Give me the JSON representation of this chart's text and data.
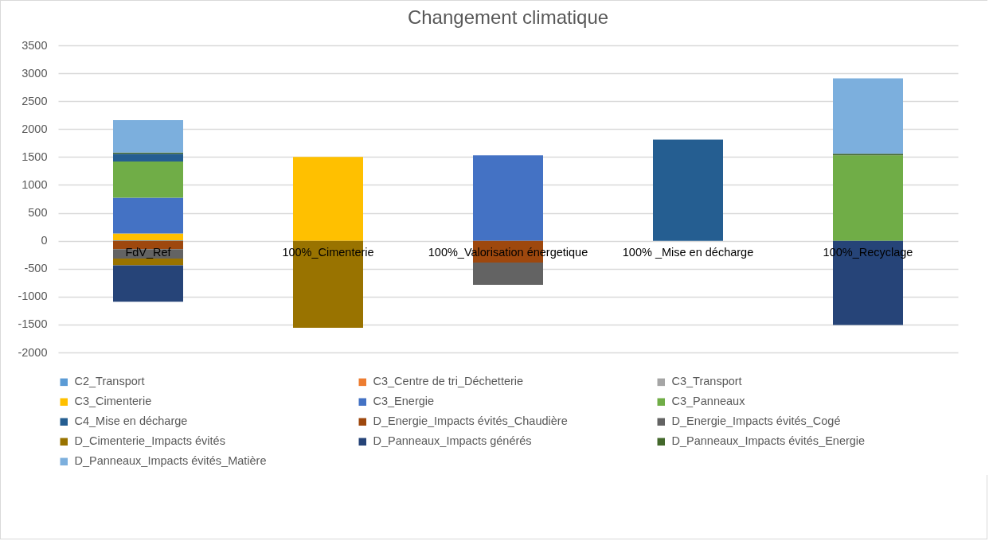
{
  "chart_data": {
    "type": "bar",
    "title": "Changement climatique",
    "stacked": true,
    "categories": [
      "FdV_Ref",
      "100%_Cimenterie",
      "100%_Valorisation énergetique",
      "100% _Mise en décharge",
      "100%_Recyclage"
    ],
    "ylim": [
      -2000,
      3500
    ],
    "yticks": [
      -2000,
      -1500,
      -1000,
      -500,
      0,
      500,
      1000,
      1500,
      2000,
      2500,
      3000,
      3500
    ],
    "grid": "y",
    "legend": "bottom",
    "series": [
      {
        "name": "C2_Transport",
        "color": "#5b9bd5",
        "values": [
          10,
          null,
          null,
          null,
          null
        ]
      },
      {
        "name": "C3_Centre de tri_Déchetterie",
        "color": "#ed7d31",
        "values": [
          null,
          null,
          null,
          null,
          null
        ]
      },
      {
        "name": "C3_Transport",
        "color": "#a5a5a5",
        "values": [
          null,
          null,
          null,
          null,
          null
        ]
      },
      {
        "name": "C3_Cimenterie",
        "color": "#ffc000",
        "values": [
          120,
          1500,
          null,
          null,
          null
        ]
      },
      {
        "name": "C3_Energie",
        "color": "#4472c4",
        "values": [
          640,
          null,
          1530,
          null,
          null
        ]
      },
      {
        "name": "C3_Panneaux",
        "color": "#70ad47",
        "values": [
          650,
          null,
          null,
          null,
          1530
        ]
      },
      {
        "name": "C4_Mise en décharge",
        "color": "#255e91",
        "values": [
          140,
          null,
          null,
          1810,
          null
        ]
      },
      {
        "name": "D_Energie_Impacts évités_Chaudière",
        "color": "#9e480e",
        "values": [
          -150,
          null,
          -390,
          null,
          null
        ]
      },
      {
        "name": "D_Energie_Impacts évités_Cogé",
        "color": "#636363",
        "values": [
          -170,
          null,
          -400,
          null,
          null
        ]
      },
      {
        "name": "D_Cimenterie_Impacts évités",
        "color": "#997300",
        "values": [
          -120,
          -1560,
          null,
          null,
          null
        ]
      },
      {
        "name": "D_Panneaux_Impacts générés",
        "color": "#264478",
        "values": [
          -650,
          null,
          null,
          null,
          -1510
        ]
      },
      {
        "name": "D_Panneaux_Impacts évités_Energie",
        "color": "#43682b",
        "values": [
          20,
          null,
          null,
          null,
          30
        ]
      },
      {
        "name": "D_Panneaux_Impacts évités_Matière",
        "color": "#7cafdd",
        "values": [
          580,
          null,
          null,
          null,
          1350
        ]
      }
    ]
  }
}
